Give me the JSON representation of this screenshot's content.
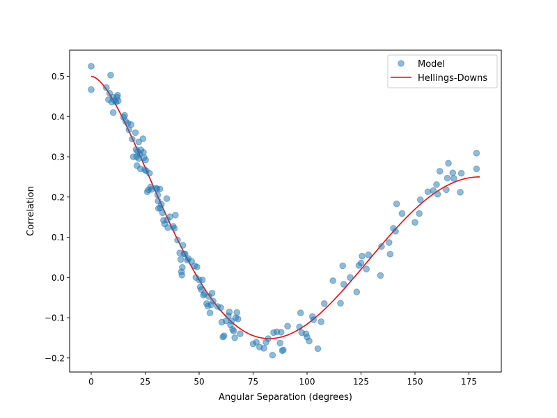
{
  "chart_data": {
    "type": "scatter",
    "title": "",
    "xlabel": "Angular Separation (degrees)",
    "ylabel": "Correlation",
    "xlim": [
      -10,
      190
    ],
    "ylim": [
      -0.235,
      0.565
    ],
    "xticks": [
      0,
      25,
      50,
      75,
      100,
      125,
      150,
      175
    ],
    "yticks": [
      -0.2,
      -0.1,
      0.0,
      0.1,
      0.2,
      0.3,
      0.4,
      0.5
    ],
    "xtick_labels": [
      "0",
      "25",
      "50",
      "75",
      "100",
      "125",
      "150",
      "175"
    ],
    "ytick_labels": [
      "−0.2",
      "−0.1",
      "0.0",
      "0.1",
      "0.2",
      "0.3",
      "0.4",
      "0.5"
    ],
    "grid": false,
    "legend": {
      "placement": "upper-right",
      "entries": [
        {
          "label": "Model",
          "kind": "marker"
        },
        {
          "label": "Hellings-Downs",
          "kind": "line"
        }
      ]
    },
    "series": [
      {
        "name": "Model",
        "kind": "scatter",
        "color": "#1f77b4",
        "alpha": 0.5,
        "points": [
          [
            0.0,
            0.525
          ],
          [
            0.0,
            0.467
          ],
          [
            7.0,
            0.472
          ],
          [
            8.0,
            0.442
          ],
          [
            8.5,
            0.458
          ],
          [
            9.0,
            0.503
          ],
          [
            9.5,
            0.436
          ],
          [
            10.0,
            0.448
          ],
          [
            10.2,
            0.41
          ],
          [
            10.8,
            0.44
          ],
          [
            11.5,
            0.436
          ],
          [
            12.0,
            0.448
          ],
          [
            12.2,
            0.453
          ],
          [
            12.5,
            0.439
          ],
          [
            15.0,
            0.398
          ],
          [
            15.5,
            0.403
          ],
          [
            16.0,
            0.388
          ],
          [
            17.0,
            0.383
          ],
          [
            17.5,
            0.367
          ],
          [
            18.5,
            0.38
          ],
          [
            19.0,
            0.344
          ],
          [
            19.5,
            0.3
          ],
          [
            20.5,
            0.36
          ],
          [
            20.8,
            0.318
          ],
          [
            21.0,
            0.3
          ],
          [
            21.2,
            0.278
          ],
          [
            21.5,
            0.313
          ],
          [
            22.0,
            0.337
          ],
          [
            22.0,
            0.296
          ],
          [
            22.5,
            0.307
          ],
          [
            22.8,
            0.27
          ],
          [
            23.0,
            0.317
          ],
          [
            24.0,
            0.345
          ],
          [
            24.2,
            0.311
          ],
          [
            24.5,
            0.298
          ],
          [
            24.8,
            0.268
          ],
          [
            25.2,
            0.292
          ],
          [
            25.5,
            0.265
          ],
          [
            26.0,
            0.213
          ],
          [
            26.5,
            0.218
          ],
          [
            27.0,
            0.259
          ],
          [
            27.5,
            0.225
          ],
          [
            28.0,
            0.219
          ],
          [
            30.0,
            0.222
          ],
          [
            30.5,
            0.22
          ],
          [
            30.8,
            0.205
          ],
          [
            31.0,
            0.19
          ],
          [
            31.2,
            0.172
          ],
          [
            31.8,
            0.22
          ],
          [
            32.0,
            0.173
          ],
          [
            32.5,
            0.182
          ],
          [
            33.0,
            0.161
          ],
          [
            33.5,
            0.142
          ],
          [
            34.0,
            0.133
          ],
          [
            35.0,
            0.196
          ],
          [
            35.2,
            0.143
          ],
          [
            35.5,
            0.124
          ],
          [
            36.5,
            0.151
          ],
          [
            38.0,
            0.127
          ],
          [
            38.5,
            0.122
          ],
          [
            39.0,
            0.155
          ],
          [
            40.0,
            0.093
          ],
          [
            41.0,
            0.061
          ],
          [
            41.5,
            0.045
          ],
          [
            41.8,
            0.014
          ],
          [
            42.0,
            0.006
          ],
          [
            42.2,
            0.025
          ],
          [
            42.5,
            0.08
          ],
          [
            43.0,
            0.059
          ],
          [
            43.5,
            0.058
          ],
          [
            44.5,
            0.043
          ],
          [
            45.0,
            0.047
          ],
          [
            46.5,
            0.04
          ],
          [
            48.0,
            0.029
          ],
          [
            48.5,
            0.0
          ],
          [
            49.0,
            0.026
          ],
          [
            50.0,
            -0.006
          ],
          [
            50.5,
            -0.024
          ],
          [
            51.0,
            -0.03
          ],
          [
            51.5,
            -0.006
          ],
          [
            52.0,
            -0.044
          ],
          [
            52.5,
            -0.04
          ],
          [
            53.5,
            -0.065
          ],
          [
            54.0,
            -0.071
          ],
          [
            54.5,
            -0.047
          ],
          [
            55.0,
            -0.088
          ],
          [
            55.5,
            -0.068
          ],
          [
            56.0,
            -0.039
          ],
          [
            56.5,
            -0.059
          ],
          [
            58.5,
            -0.072
          ],
          [
            60.0,
            -0.075
          ],
          [
            60.5,
            -0.111
          ],
          [
            61.0,
            -0.148
          ],
          [
            61.5,
            -0.145
          ],
          [
            62.5,
            -0.108
          ],
          [
            63.5,
            -0.095
          ],
          [
            64.0,
            -0.086
          ],
          [
            64.5,
            -0.118
          ],
          [
            65.0,
            -0.108
          ],
          [
            65.5,
            -0.129
          ],
          [
            66.0,
            -0.133
          ],
          [
            66.5,
            -0.15
          ],
          [
            67.0,
            -0.1
          ],
          [
            67.5,
            -0.087
          ],
          [
            68.0,
            -0.103
          ],
          [
            69.0,
            -0.14
          ],
          [
            75.0,
            -0.165
          ],
          [
            76.5,
            -0.161
          ],
          [
            78.0,
            -0.173
          ],
          [
            80.0,
            -0.176
          ],
          [
            81.0,
            -0.161
          ],
          [
            82.0,
            -0.152
          ],
          [
            84.0,
            -0.193
          ],
          [
            84.5,
            -0.137
          ],
          [
            86.0,
            -0.135
          ],
          [
            87.5,
            -0.163
          ],
          [
            88.0,
            -0.136
          ],
          [
            88.5,
            -0.182
          ],
          [
            89.0,
            -0.18
          ],
          [
            91.0,
            -0.121
          ],
          [
            96.5,
            -0.123
          ],
          [
            97.0,
            -0.088
          ],
          [
            97.5,
            -0.137
          ],
          [
            99.5,
            -0.14
          ],
          [
            100.0,
            -0.148
          ],
          [
            101.0,
            -0.158
          ],
          [
            102.5,
            -0.097
          ],
          [
            103.0,
            -0.105
          ],
          [
            105.0,
            -0.177
          ],
          [
            106.5,
            -0.11
          ],
          [
            108.0,
            -0.065
          ],
          [
            112.0,
            -0.008
          ],
          [
            115.5,
            -0.064
          ],
          [
            116.5,
            0.029
          ],
          [
            117.0,
            -0.017
          ],
          [
            120.0,
            0.0
          ],
          [
            123.0,
            -0.036
          ],
          [
            124.0,
            0.03
          ],
          [
            125.0,
            0.036
          ],
          [
            125.5,
            0.053
          ],
          [
            127.5,
            0.021
          ],
          [
            128.5,
            0.056
          ],
          [
            134.0,
            0.005
          ],
          [
            134.5,
            0.077
          ],
          [
            138.0,
            0.087
          ],
          [
            138.5,
            0.058
          ],
          [
            140.0,
            0.122
          ],
          [
            141.0,
            0.115
          ],
          [
            141.5,
            0.183
          ],
          [
            144.0,
            0.159
          ],
          [
            150.0,
            0.137
          ],
          [
            152.0,
            0.159
          ],
          [
            152.5,
            0.193
          ],
          [
            156.0,
            0.213
          ],
          [
            158.5,
            0.216
          ],
          [
            160.0,
            0.231
          ],
          [
            160.5,
            0.207
          ],
          [
            161.5,
            0.264
          ],
          [
            164.5,
            0.218
          ],
          [
            165.0,
            0.247
          ],
          [
            165.5,
            0.284
          ],
          [
            167.5,
            0.26
          ],
          [
            168.0,
            0.246
          ],
          [
            171.0,
            0.212
          ],
          [
            171.5,
            0.259
          ],
          [
            178.5,
            0.309
          ],
          [
            178.5,
            0.27
          ]
        ]
      },
      {
        "name": "Hellings-Downs",
        "kind": "line",
        "color": "#ff0000",
        "x_range": [
          0,
          180
        ],
        "formula": "0.5 - 0.25*x + 1.5*x*ln(x), x = (1 - cos(theta))/2"
      }
    ]
  }
}
